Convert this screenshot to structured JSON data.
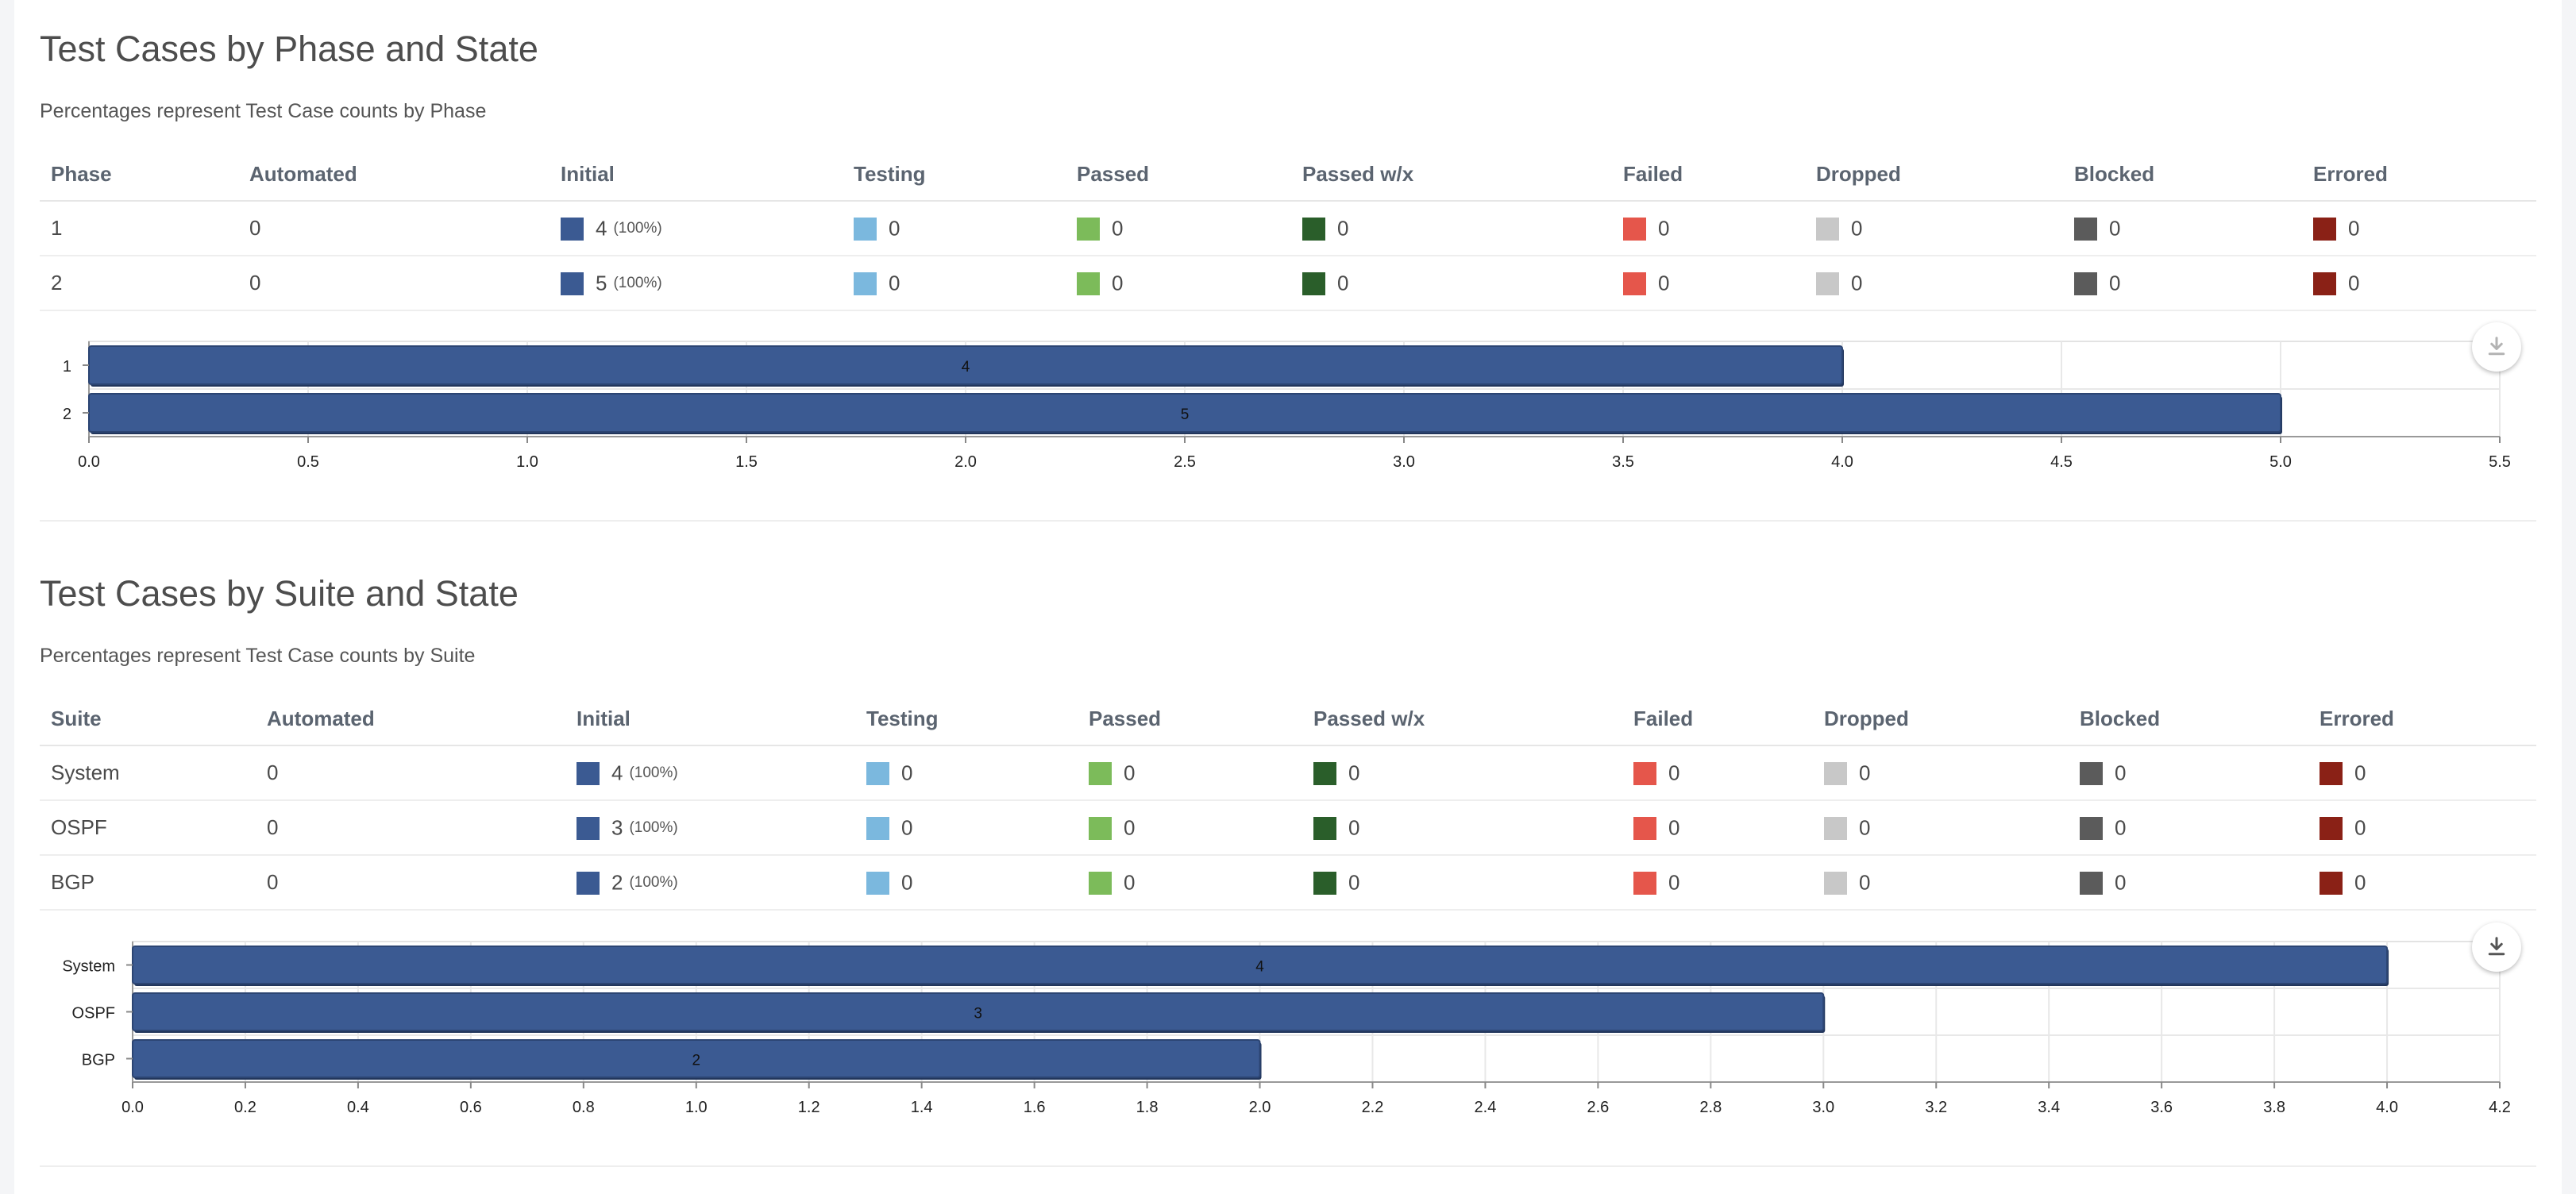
{
  "sections": [
    {
      "title": "Test Cases by Phase and State",
      "subtitle": "Percentages represent Test Case counts by Phase",
      "columns": [
        "Phase",
        "Automated",
        "Initial",
        "Testing",
        "Passed",
        "Passed w/x",
        "Failed",
        "Dropped",
        "Blocked",
        "Errored"
      ],
      "rows": [
        {
          "label": "1",
          "automated": "0",
          "initial": "4",
          "initial_pct": "(100%)",
          "testing": "0",
          "passed": "0",
          "passed_wx": "0",
          "failed": "0",
          "dropped": "0",
          "blocked": "0",
          "errored": "0"
        },
        {
          "label": "2",
          "automated": "0",
          "initial": "5",
          "initial_pct": "(100%)",
          "testing": "0",
          "passed": "0",
          "passed_wx": "0",
          "failed": "0",
          "dropped": "0",
          "blocked": "0",
          "errored": "0"
        }
      ]
    },
    {
      "title": "Test Cases by Suite and State",
      "subtitle": "Percentages represent Test Case counts by Suite",
      "columns": [
        "Suite",
        "Automated",
        "Initial",
        "Testing",
        "Passed",
        "Passed w/x",
        "Failed",
        "Dropped",
        "Blocked",
        "Errored"
      ],
      "rows": [
        {
          "label": "System",
          "automated": "0",
          "initial": "4",
          "initial_pct": "(100%)",
          "testing": "0",
          "passed": "0",
          "passed_wx": "0",
          "failed": "0",
          "dropped": "0",
          "blocked": "0",
          "errored": "0"
        },
        {
          "label": "OSPF",
          "automated": "0",
          "initial": "3",
          "initial_pct": "(100%)",
          "testing": "0",
          "passed": "0",
          "passed_wx": "0",
          "failed": "0",
          "dropped": "0",
          "blocked": "0",
          "errored": "0"
        },
        {
          "label": "BGP",
          "automated": "0",
          "initial": "2",
          "initial_pct": "(100%)",
          "testing": "0",
          "passed": "0",
          "passed_wx": "0",
          "failed": "0",
          "dropped": "0",
          "blocked": "0",
          "errored": "0"
        }
      ]
    }
  ],
  "state_colors": {
    "initial": "#3b5a92",
    "testing": "#7bb8de",
    "passed": "#7cbb5a",
    "passed_wx": "#2a5e2a",
    "failed": "#e5564b",
    "dropped": "#c8c8c8",
    "blocked": "#5b5b5b",
    "errored": "#8a2116"
  },
  "download_icon": "download-icon",
  "chart_data": [
    {
      "type": "bar",
      "orientation": "horizontal",
      "categories": [
        "1",
        "2"
      ],
      "values": [
        4,
        5
      ],
      "data_labels": [
        "4",
        "5"
      ],
      "xlim": [
        0,
        5.5
      ],
      "x_ticks": [
        "0.0",
        "0.5",
        "1.0",
        "1.5",
        "2.0",
        "2.5",
        "3.0",
        "3.5",
        "4.0",
        "4.5",
        "5.0",
        "5.5"
      ],
      "bar_color": "#3b5a92",
      "grid": true
    },
    {
      "type": "bar",
      "orientation": "horizontal",
      "categories": [
        "System",
        "OSPF",
        "BGP"
      ],
      "values": [
        4,
        3,
        2
      ],
      "data_labels": [
        "4",
        "3",
        "2"
      ],
      "xlim": [
        0,
        4.2
      ],
      "x_ticks": [
        "0.0",
        "0.2",
        "0.4",
        "0.6",
        "0.8",
        "1.0",
        "1.2",
        "1.4",
        "1.6",
        "1.8",
        "2.0",
        "2.2",
        "2.4",
        "2.6",
        "2.8",
        "3.0",
        "3.2",
        "3.4",
        "3.6",
        "3.8",
        "4.0",
        "4.2"
      ],
      "bar_color": "#3b5a92",
      "grid": true
    }
  ]
}
